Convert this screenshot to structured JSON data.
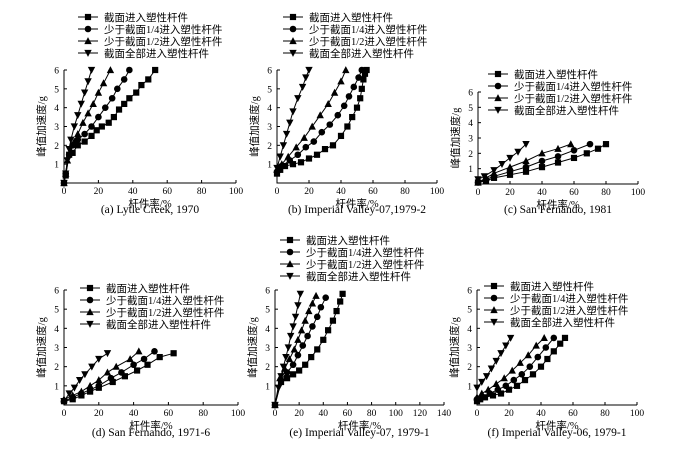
{
  "chart_data": [
    {
      "type": "line",
      "caption": "(a) Lytle Creek, 1970",
      "xlabel": "杆件率/%",
      "ylabel": "峰值加速度/g",
      "xlim": [
        0,
        100
      ],
      "ylim": [
        0,
        6
      ],
      "xticks": [
        0,
        20,
        40,
        60,
        80,
        100
      ],
      "yticks": [
        1,
        2,
        3,
        4,
        5,
        6
      ],
      "legend_position": "top",
      "series": [
        {
          "name": "截面进入塑性杆件",
          "marker": "square",
          "x": [
            0,
            1,
            3,
            5,
            8,
            12,
            16,
            19,
            22,
            26,
            29,
            32,
            35,
            38,
            42,
            45,
            49,
            53
          ],
          "y": [
            0,
            0.4,
            1.5,
            1.6,
            2.0,
            2.2,
            2.5,
            2.8,
            3.0,
            3.2,
            3.5,
            3.9,
            4.2,
            4.5,
            4.8,
            5.2,
            5.5,
            6.0
          ]
        },
        {
          "name": "少于截面1/4进入塑性杆件",
          "marker": "circle",
          "x": [
            0,
            1,
            3,
            5,
            8,
            12,
            16,
            20,
            24,
            28,
            31,
            35,
            38
          ],
          "y": [
            0,
            0.5,
            1.5,
            2.0,
            2.3,
            2.6,
            3.0,
            3.5,
            4.0,
            4.5,
            5.0,
            5.5,
            6.0
          ]
        },
        {
          "name": "少于截面1/2进入塑性杆件",
          "marker": "triangle",
          "x": [
            0,
            1,
            2,
            4,
            6,
            8,
            11,
            14,
            17,
            20,
            23,
            27
          ],
          "y": [
            0,
            0.5,
            1.2,
            1.7,
            2.2,
            2.6,
            3.2,
            3.7,
            4.2,
            4.8,
            5.3,
            6.0
          ]
        },
        {
          "name": "截面全部进入塑性杆件",
          "marker": "triangle-down",
          "x": [
            0,
            1,
            2,
            3,
            4,
            6,
            8,
            10,
            12,
            14,
            16
          ],
          "y": [
            0,
            0.5,
            1.2,
            1.8,
            2.3,
            3.0,
            3.6,
            4.2,
            4.8,
            5.4,
            6.0
          ]
        }
      ]
    },
    {
      "type": "line",
      "caption": "(b) Imperial Valley-07,1979-2",
      "xlabel": "杆件率/%",
      "ylabel": "峰值加速度/g",
      "xlim": [
        0,
        100
      ],
      "ylim": [
        0,
        6
      ],
      "xticks": [
        0,
        20,
        40,
        60,
        80,
        100
      ],
      "yticks": [
        1,
        2,
        3,
        4,
        5,
        6
      ],
      "legend_position": "top",
      "series": [
        {
          "name": "截面进入塑性杆件",
          "marker": "square",
          "x": [
            0,
            2,
            5,
            10,
            15,
            20,
            25,
            30,
            35,
            40,
            44,
            47,
            50,
            52,
            53,
            54,
            55,
            56
          ],
          "y": [
            0.5,
            0.7,
            0.9,
            1.0,
            1.1,
            1.3,
            1.5,
            1.8,
            2.0,
            2.5,
            3.0,
            3.5,
            4.0,
            4.5,
            5.0,
            5.5,
            5.8,
            6.0
          ]
        },
        {
          "name": "少于截面1/4进入塑性杆件",
          "marker": "circle",
          "x": [
            0,
            3,
            8,
            13,
            18,
            23,
            28,
            33,
            38,
            42,
            45,
            48,
            51,
            53
          ],
          "y": [
            0.6,
            0.9,
            1.2,
            1.5,
            1.9,
            2.2,
            2.7,
            3.1,
            3.6,
            4.1,
            4.6,
            5.1,
            5.6,
            6.0
          ]
        },
        {
          "name": "少于截面1/2进入塑性杆件",
          "marker": "triangle",
          "x": [
            0,
            3,
            7,
            12,
            17,
            22,
            27,
            32,
            36,
            40,
            43
          ],
          "y": [
            0.7,
            1.0,
            1.4,
            1.9,
            2.4,
            3.0,
            3.6,
            4.2,
            4.8,
            5.4,
            6.0
          ]
        },
        {
          "name": "截面全部进入塑性杆件",
          "marker": "triangle-down",
          "x": [
            0,
            2,
            4,
            6,
            8,
            10,
            13,
            16,
            18,
            20
          ],
          "y": [
            0.8,
            1.4,
            2.0,
            2.6,
            3.2,
            3.8,
            4.5,
            5.1,
            5.6,
            6.0
          ]
        }
      ]
    },
    {
      "type": "line",
      "caption": "(c) San Fernando, 1981",
      "xlabel": "杆件率/%",
      "ylabel": "峰值加速度/g",
      "xlim": [
        0,
        100
      ],
      "ylim": [
        0,
        6
      ],
      "xticks": [
        0,
        20,
        40,
        60,
        80,
        100
      ],
      "yticks": [
        1,
        2,
        3,
        4,
        5,
        6
      ],
      "legend_position": "top",
      "series": [
        {
          "name": "截面进入塑性杆件",
          "marker": "square",
          "x": [
            0,
            5,
            10,
            20,
            30,
            40,
            50,
            60,
            68,
            75,
            80
          ],
          "y": [
            0.1,
            0.2,
            0.4,
            0.6,
            0.8,
            1.1,
            1.4,
            1.7,
            2.0,
            2.3,
            2.6
          ]
        },
        {
          "name": "少于截面1/4进入塑性杆件",
          "marker": "circle",
          "x": [
            0,
            5,
            10,
            20,
            30,
            40,
            50,
            60,
            70
          ],
          "y": [
            0.1,
            0.3,
            0.5,
            0.8,
            1.1,
            1.5,
            1.8,
            2.2,
            2.6
          ]
        },
        {
          "name": "少于截面1/2进入塑性杆件",
          "marker": "triangle",
          "x": [
            0,
            5,
            10,
            20,
            30,
            40,
            50,
            58
          ],
          "y": [
            0.1,
            0.4,
            0.7,
            1.1,
            1.5,
            2.0,
            2.3,
            2.6
          ]
        },
        {
          "name": "截面全部进入塑性杆件",
          "marker": "triangle-down",
          "x": [
            0,
            4,
            10,
            15,
            20,
            25,
            30
          ],
          "y": [
            0.3,
            0.5,
            0.9,
            1.3,
            1.7,
            2.1,
            2.6
          ]
        }
      ]
    },
    {
      "type": "line",
      "caption": "(d) San Fernando, 1971-6",
      "xlabel": "杆件率/%",
      "ylabel": "峰值加速度/g",
      "xlim": [
        0,
        100
      ],
      "ylim": [
        0,
        6
      ],
      "xticks": [
        0,
        20,
        40,
        60,
        80,
        100
      ],
      "yticks": [
        1,
        2,
        3,
        4,
        5,
        6
      ],
      "legend_position": "top",
      "series": [
        {
          "name": "截面进入塑性杆件",
          "marker": "square",
          "x": [
            0,
            5,
            10,
            15,
            20,
            28,
            35,
            42,
            48,
            55,
            63
          ],
          "y": [
            0.2,
            0.3,
            0.5,
            0.7,
            0.9,
            1.2,
            1.5,
            1.8,
            2.1,
            2.5,
            2.7
          ]
        },
        {
          "name": "少于截面1/4进入塑性杆件",
          "marker": "circle",
          "x": [
            0,
            5,
            10,
            15,
            20,
            27,
            33,
            40,
            46,
            52
          ],
          "y": [
            0.2,
            0.4,
            0.6,
            0.8,
            1.0,
            1.4,
            1.7,
            2.1,
            2.4,
            2.8
          ]
        },
        {
          "name": "少于截面1/2进入塑性杆件",
          "marker": "triangle",
          "x": [
            0,
            5,
            10,
            15,
            20,
            25,
            30,
            38,
            43
          ],
          "y": [
            0.3,
            0.5,
            0.7,
            1.0,
            1.3,
            1.7,
            2.0,
            2.4,
            2.8
          ]
        },
        {
          "name": "截面全部进入塑性杆件",
          "marker": "triangle-down",
          "x": [
            0,
            3,
            6,
            9,
            12,
            16,
            20,
            25
          ],
          "y": [
            0.2,
            0.6,
            0.9,
            1.3,
            1.6,
            2.0,
            2.4,
            2.7
          ]
        }
      ]
    },
    {
      "type": "line",
      "caption": "(e) Imperial Valley-07, 1979-1",
      "xlabel": "杆件率/%",
      "ylabel": "峰值加速度/g",
      "xlim": [
        0,
        140
      ],
      "ylim": [
        0,
        6
      ],
      "xticks": [
        0,
        20,
        40,
        60,
        80,
        100,
        120,
        140
      ],
      "yticks": [
        1,
        2,
        3,
        4,
        5,
        6
      ],
      "legend_position": "top",
      "series": [
        {
          "name": "截面进入塑性杆件",
          "marker": "square",
          "x": [
            0,
            5,
            10,
            15,
            20,
            25,
            30,
            35,
            40,
            44,
            48,
            51,
            54,
            56
          ],
          "y": [
            0,
            1.2,
            1.4,
            1.6,
            1.8,
            2.1,
            2.5,
            2.9,
            3.4,
            3.9,
            4.4,
            4.9,
            5.4,
            5.8
          ]
        },
        {
          "name": "少于截面1/4进入塑性杆件",
          "marker": "circle",
          "x": [
            0,
            5,
            10,
            15,
            19,
            23,
            27,
            31,
            35,
            38,
            42
          ],
          "y": [
            0,
            1.3,
            1.7,
            2.1,
            2.6,
            3.1,
            3.6,
            4.1,
            4.6,
            5.1,
            5.6
          ]
        },
        {
          "name": "少于截面1/2进入塑性杆件",
          "marker": "triangle",
          "x": [
            0,
            4,
            8,
            12,
            16,
            19,
            22,
            25,
            28,
            31,
            34
          ],
          "y": [
            0,
            1.4,
            1.9,
            2.4,
            2.9,
            3.4,
            3.9,
            4.4,
            4.9,
            5.3,
            5.7
          ]
        },
        {
          "name": "截面全部进入塑性杆件",
          "marker": "triangle-down",
          "x": [
            0,
            3,
            5,
            7,
            9,
            11,
            13,
            15,
            17,
            19,
            21
          ],
          "y": [
            0,
            0.9,
            1.5,
            2.0,
            2.5,
            3.0,
            3.6,
            4.1,
            4.6,
            5.2,
            5.8
          ]
        }
      ]
    },
    {
      "type": "line",
      "caption": "(f) Imperial Valley-06, 1979-1",
      "xlabel": "杆件率/%",
      "ylabel": "峰值加速度/g",
      "xlim": [
        0,
        100
      ],
      "ylim": [
        0,
        6
      ],
      "xticks": [
        0,
        20,
        40,
        60,
        80,
        100
      ],
      "yticks": [
        1,
        2,
        3,
        4,
        5,
        6
      ],
      "legend_position": "top",
      "series": [
        {
          "name": "截面进入塑性杆件",
          "marker": "square",
          "x": [
            0,
            2,
            5,
            10,
            15,
            20,
            25,
            30,
            35,
            40,
            44,
            48,
            52,
            55
          ],
          "y": [
            0.2,
            0.3,
            0.4,
            0.5,
            0.6,
            0.8,
            1.0,
            1.3,
            1.6,
            2.0,
            2.4,
            2.8,
            3.2,
            3.5
          ]
        },
        {
          "name": "少于截面1/4进入塑性杆件",
          "marker": "circle",
          "x": [
            0,
            3,
            8,
            13,
            18,
            23,
            28,
            33,
            38,
            43,
            48
          ],
          "y": [
            0.3,
            0.4,
            0.6,
            0.8,
            1.0,
            1.3,
            1.6,
            2.0,
            2.5,
            3.0,
            3.5
          ]
        },
        {
          "name": "少于截面1/2进入塑性杆件",
          "marker": "triangle",
          "x": [
            0,
            3,
            7,
            12,
            17,
            22,
            27,
            32,
            37,
            42
          ],
          "y": [
            0.4,
            0.6,
            0.8,
            1.1,
            1.4,
            1.8,
            2.2,
            2.6,
            3.1,
            3.5
          ]
        },
        {
          "name": "截面全部进入塑性杆件",
          "marker": "triangle-down",
          "x": [
            0,
            3,
            6,
            9,
            12,
            15,
            18,
            21
          ],
          "y": [
            0.9,
            1.2,
            1.5,
            1.9,
            2.3,
            2.7,
            3.1,
            3.5
          ]
        }
      ]
    }
  ]
}
